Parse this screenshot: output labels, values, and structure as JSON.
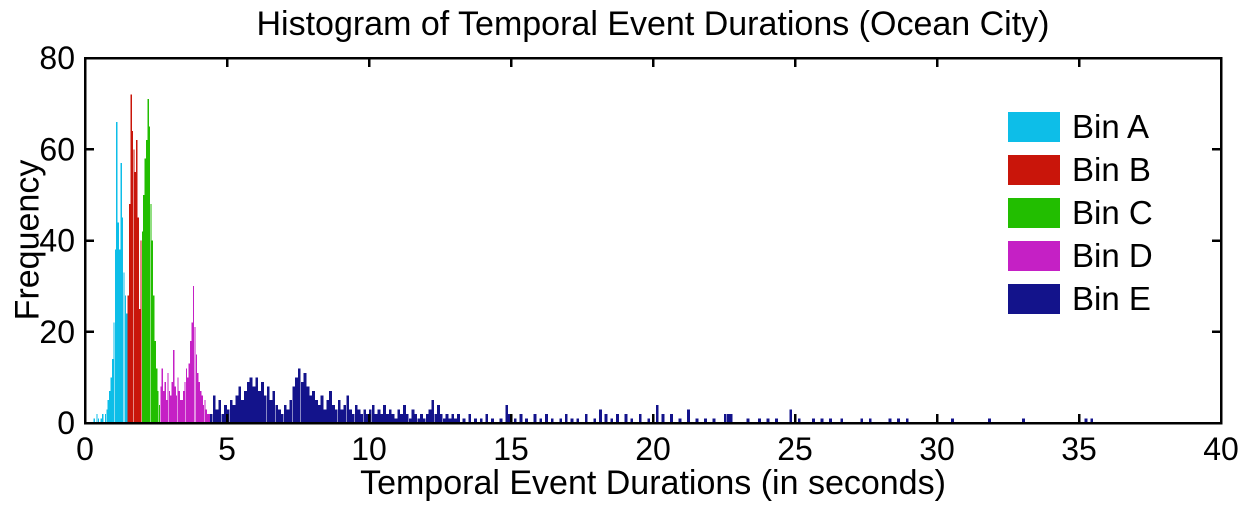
{
  "title": "Histogram of Temporal Event Durations (Ocean City)",
  "axes": {
    "xlabel": "Temporal Event Durations (in seconds)",
    "ylabel": "Frequency"
  },
  "colors": {
    "bin_a": "#0DBEE8",
    "bin_b": "#C9150A",
    "bin_c": "#22BE00",
    "bin_d": "#C520C5",
    "bin_e": "#13138B",
    "axis": "#000000",
    "background": "#FFFFFF"
  },
  "chart_data": {
    "type": "bar",
    "title": "Histogram of Temporal Event Durations (Ocean City)",
    "xlabel": "Temporal Event Durations (in seconds)",
    "ylabel": "Frequency",
    "xlim": [
      0,
      40
    ],
    "ylim": [
      0,
      80
    ],
    "x_ticks": [
      0,
      5,
      10,
      15,
      20,
      25,
      30,
      35,
      40
    ],
    "y_ticks": [
      0,
      20,
      40,
      60,
      80
    ],
    "grid": false,
    "legend_position": "upper-right",
    "legend_frame": false,
    "series": [
      {
        "name": "Bin A",
        "color": "#0DBEE8",
        "bar_width": 0.05,
        "points": [
          [
            0.3,
            1
          ],
          [
            0.4,
            2
          ],
          [
            0.45,
            1
          ],
          [
            0.55,
            1
          ],
          [
            0.6,
            2
          ],
          [
            0.7,
            2
          ],
          [
            0.75,
            3
          ],
          [
            0.8,
            5
          ],
          [
            0.85,
            7
          ],
          [
            0.9,
            10
          ],
          [
            0.95,
            14
          ],
          [
            1.0,
            22
          ],
          [
            1.05,
            38
          ],
          [
            1.1,
            66
          ],
          [
            1.15,
            44
          ],
          [
            1.2,
            38
          ],
          [
            1.25,
            57
          ],
          [
            1.3,
            45
          ],
          [
            1.35,
            33
          ],
          [
            1.4,
            28
          ],
          [
            1.45,
            24
          ]
        ]
      },
      {
        "name": "Bin B",
        "color": "#C9150A",
        "bar_width": 0.05,
        "points": [
          [
            1.5,
            28
          ],
          [
            1.55,
            48
          ],
          [
            1.6,
            72
          ],
          [
            1.65,
            64
          ],
          [
            1.7,
            60
          ],
          [
            1.75,
            55
          ],
          [
            1.8,
            62
          ],
          [
            1.85,
            45
          ],
          [
            1.9,
            25
          ],
          [
            1.95,
            40
          ]
        ]
      },
      {
        "name": "Bin C",
        "color": "#22BE00",
        "bar_width": 0.05,
        "points": [
          [
            2.0,
            42
          ],
          [
            2.05,
            50
          ],
          [
            2.1,
            58
          ],
          [
            2.15,
            62
          ],
          [
            2.2,
            71
          ],
          [
            2.25,
            65
          ],
          [
            2.3,
            48
          ],
          [
            2.35,
            40
          ],
          [
            2.4,
            28
          ],
          [
            2.45,
            18
          ],
          [
            2.5,
            12
          ],
          [
            2.55,
            7
          ],
          [
            2.6,
            4
          ]
        ]
      },
      {
        "name": "Bin D",
        "color": "#C520C5",
        "bar_width": 0.05,
        "points": [
          [
            2.65,
            8
          ],
          [
            2.7,
            12
          ],
          [
            2.75,
            7
          ],
          [
            2.8,
            9
          ],
          [
            2.85,
            5
          ],
          [
            2.9,
            11
          ],
          [
            2.95,
            7
          ],
          [
            3.0,
            6
          ],
          [
            3.05,
            9
          ],
          [
            3.1,
            16
          ],
          [
            3.15,
            8
          ],
          [
            3.2,
            6
          ],
          [
            3.25,
            10
          ],
          [
            3.3,
            7
          ],
          [
            3.35,
            5
          ],
          [
            3.4,
            5
          ],
          [
            3.45,
            7
          ],
          [
            3.5,
            9
          ],
          [
            3.55,
            12
          ],
          [
            3.6,
            10
          ],
          [
            3.65,
            13
          ],
          [
            3.7,
            18
          ],
          [
            3.75,
            22
          ],
          [
            3.8,
            30
          ],
          [
            3.85,
            21
          ],
          [
            3.9,
            15
          ],
          [
            3.95,
            11
          ],
          [
            4.0,
            9
          ],
          [
            4.05,
            7
          ],
          [
            4.1,
            6
          ],
          [
            4.15,
            4
          ],
          [
            4.2,
            5
          ],
          [
            4.25,
            3
          ],
          [
            4.3,
            2
          ],
          [
            4.35,
            2
          ]
        ]
      },
      {
        "name": "Bin E",
        "color": "#13138B",
        "bar_width": 0.1,
        "points": [
          [
            4.4,
            2
          ],
          [
            4.5,
            6
          ],
          [
            4.6,
            3
          ],
          [
            4.7,
            5
          ],
          [
            4.8,
            2
          ],
          [
            4.9,
            4
          ],
          [
            5.0,
            3
          ],
          [
            5.1,
            5
          ],
          [
            5.2,
            4
          ],
          [
            5.3,
            6
          ],
          [
            5.4,
            8
          ],
          [
            5.5,
            5
          ],
          [
            5.6,
            7
          ],
          [
            5.7,
            9
          ],
          [
            5.8,
            10
          ],
          [
            5.9,
            8
          ],
          [
            6.0,
            10
          ],
          [
            6.1,
            7
          ],
          [
            6.2,
            9
          ],
          [
            6.3,
            6
          ],
          [
            6.4,
            8
          ],
          [
            6.5,
            5
          ],
          [
            6.6,
            7
          ],
          [
            6.7,
            4
          ],
          [
            6.8,
            3
          ],
          [
            6.9,
            2
          ],
          [
            7.0,
            4
          ],
          [
            7.1,
            3
          ],
          [
            7.2,
            5
          ],
          [
            7.3,
            8
          ],
          [
            7.4,
            10
          ],
          [
            7.5,
            12
          ],
          [
            7.6,
            9
          ],
          [
            7.7,
            11
          ],
          [
            7.8,
            8
          ],
          [
            7.9,
            6
          ],
          [
            8.0,
            7
          ],
          [
            8.1,
            5
          ],
          [
            8.2,
            4
          ],
          [
            8.3,
            6
          ],
          [
            8.4,
            3
          ],
          [
            8.5,
            5
          ],
          [
            8.6,
            7
          ],
          [
            8.7,
            4
          ],
          [
            8.8,
            3
          ],
          [
            8.9,
            5
          ],
          [
            9.0,
            3
          ],
          [
            9.1,
            4
          ],
          [
            9.2,
            6
          ],
          [
            9.3,
            3
          ],
          [
            9.4,
            2
          ],
          [
            9.5,
            4
          ],
          [
            9.6,
            3
          ],
          [
            9.7,
            2
          ],
          [
            9.8,
            3
          ],
          [
            9.9,
            2
          ],
          [
            10.0,
            3
          ],
          [
            10.1,
            4
          ],
          [
            10.2,
            2
          ],
          [
            10.3,
            3
          ],
          [
            10.4,
            2
          ],
          [
            10.5,
            4
          ],
          [
            10.6,
            2
          ],
          [
            10.7,
            3
          ],
          [
            10.8,
            2
          ],
          [
            10.9,
            1
          ],
          [
            11.0,
            3
          ],
          [
            11.1,
            2
          ],
          [
            11.2,
            4
          ],
          [
            11.3,
            2
          ],
          [
            11.4,
            1
          ],
          [
            11.5,
            3
          ],
          [
            11.6,
            2
          ],
          [
            11.7,
            1
          ],
          [
            11.8,
            2
          ],
          [
            11.9,
            1
          ],
          [
            12.0,
            2
          ],
          [
            12.1,
            3
          ],
          [
            12.2,
            5
          ],
          [
            12.3,
            2
          ],
          [
            12.4,
            4
          ],
          [
            12.5,
            2
          ],
          [
            12.6,
            1
          ],
          [
            12.7,
            2
          ],
          [
            12.8,
            1
          ],
          [
            12.9,
            2
          ],
          [
            13.0,
            1
          ],
          [
            13.1,
            2
          ],
          [
            13.3,
            1
          ],
          [
            13.5,
            2
          ],
          [
            13.7,
            1
          ],
          [
            13.9,
            1
          ],
          [
            14.1,
            2
          ],
          [
            14.3,
            1
          ],
          [
            14.6,
            1
          ],
          [
            14.8,
            4
          ],
          [
            14.9,
            2
          ],
          [
            15.1,
            1
          ],
          [
            15.3,
            2
          ],
          [
            15.5,
            1
          ],
          [
            15.8,
            2
          ],
          [
            16.0,
            1
          ],
          [
            16.2,
            2
          ],
          [
            16.4,
            1
          ],
          [
            16.7,
            1
          ],
          [
            16.9,
            2
          ],
          [
            17.1,
            1
          ],
          [
            17.3,
            1
          ],
          [
            17.6,
            2
          ],
          [
            17.9,
            1
          ],
          [
            18.1,
            3
          ],
          [
            18.3,
            2
          ],
          [
            18.5,
            1
          ],
          [
            18.7,
            2
          ],
          [
            19.0,
            2
          ],
          [
            19.2,
            1
          ],
          [
            19.5,
            2
          ],
          [
            19.8,
            1
          ],
          [
            20.1,
            4
          ],
          [
            20.3,
            2
          ],
          [
            20.6,
            2
          ],
          [
            20.9,
            1
          ],
          [
            21.2,
            3
          ],
          [
            21.5,
            1
          ],
          [
            21.8,
            1
          ],
          [
            22.1,
            1
          ],
          [
            22.5,
            2
          ],
          [
            22.6,
            2
          ],
          [
            22.7,
            2
          ],
          [
            23.3,
            1
          ],
          [
            23.7,
            1
          ],
          [
            24.0,
            1
          ],
          [
            24.3,
            1
          ],
          [
            24.8,
            3
          ],
          [
            25.1,
            1
          ],
          [
            25.6,
            1
          ],
          [
            25.9,
            1
          ],
          [
            26.2,
            1
          ],
          [
            26.6,
            1
          ],
          [
            27.3,
            1
          ],
          [
            27.6,
            1
          ],
          [
            28.3,
            1
          ],
          [
            28.6,
            1
          ],
          [
            28.9,
            1
          ],
          [
            30.5,
            1
          ],
          [
            31.8,
            1
          ],
          [
            33.0,
            1
          ],
          [
            35.2,
            1
          ],
          [
            35.4,
            1
          ]
        ]
      }
    ]
  }
}
